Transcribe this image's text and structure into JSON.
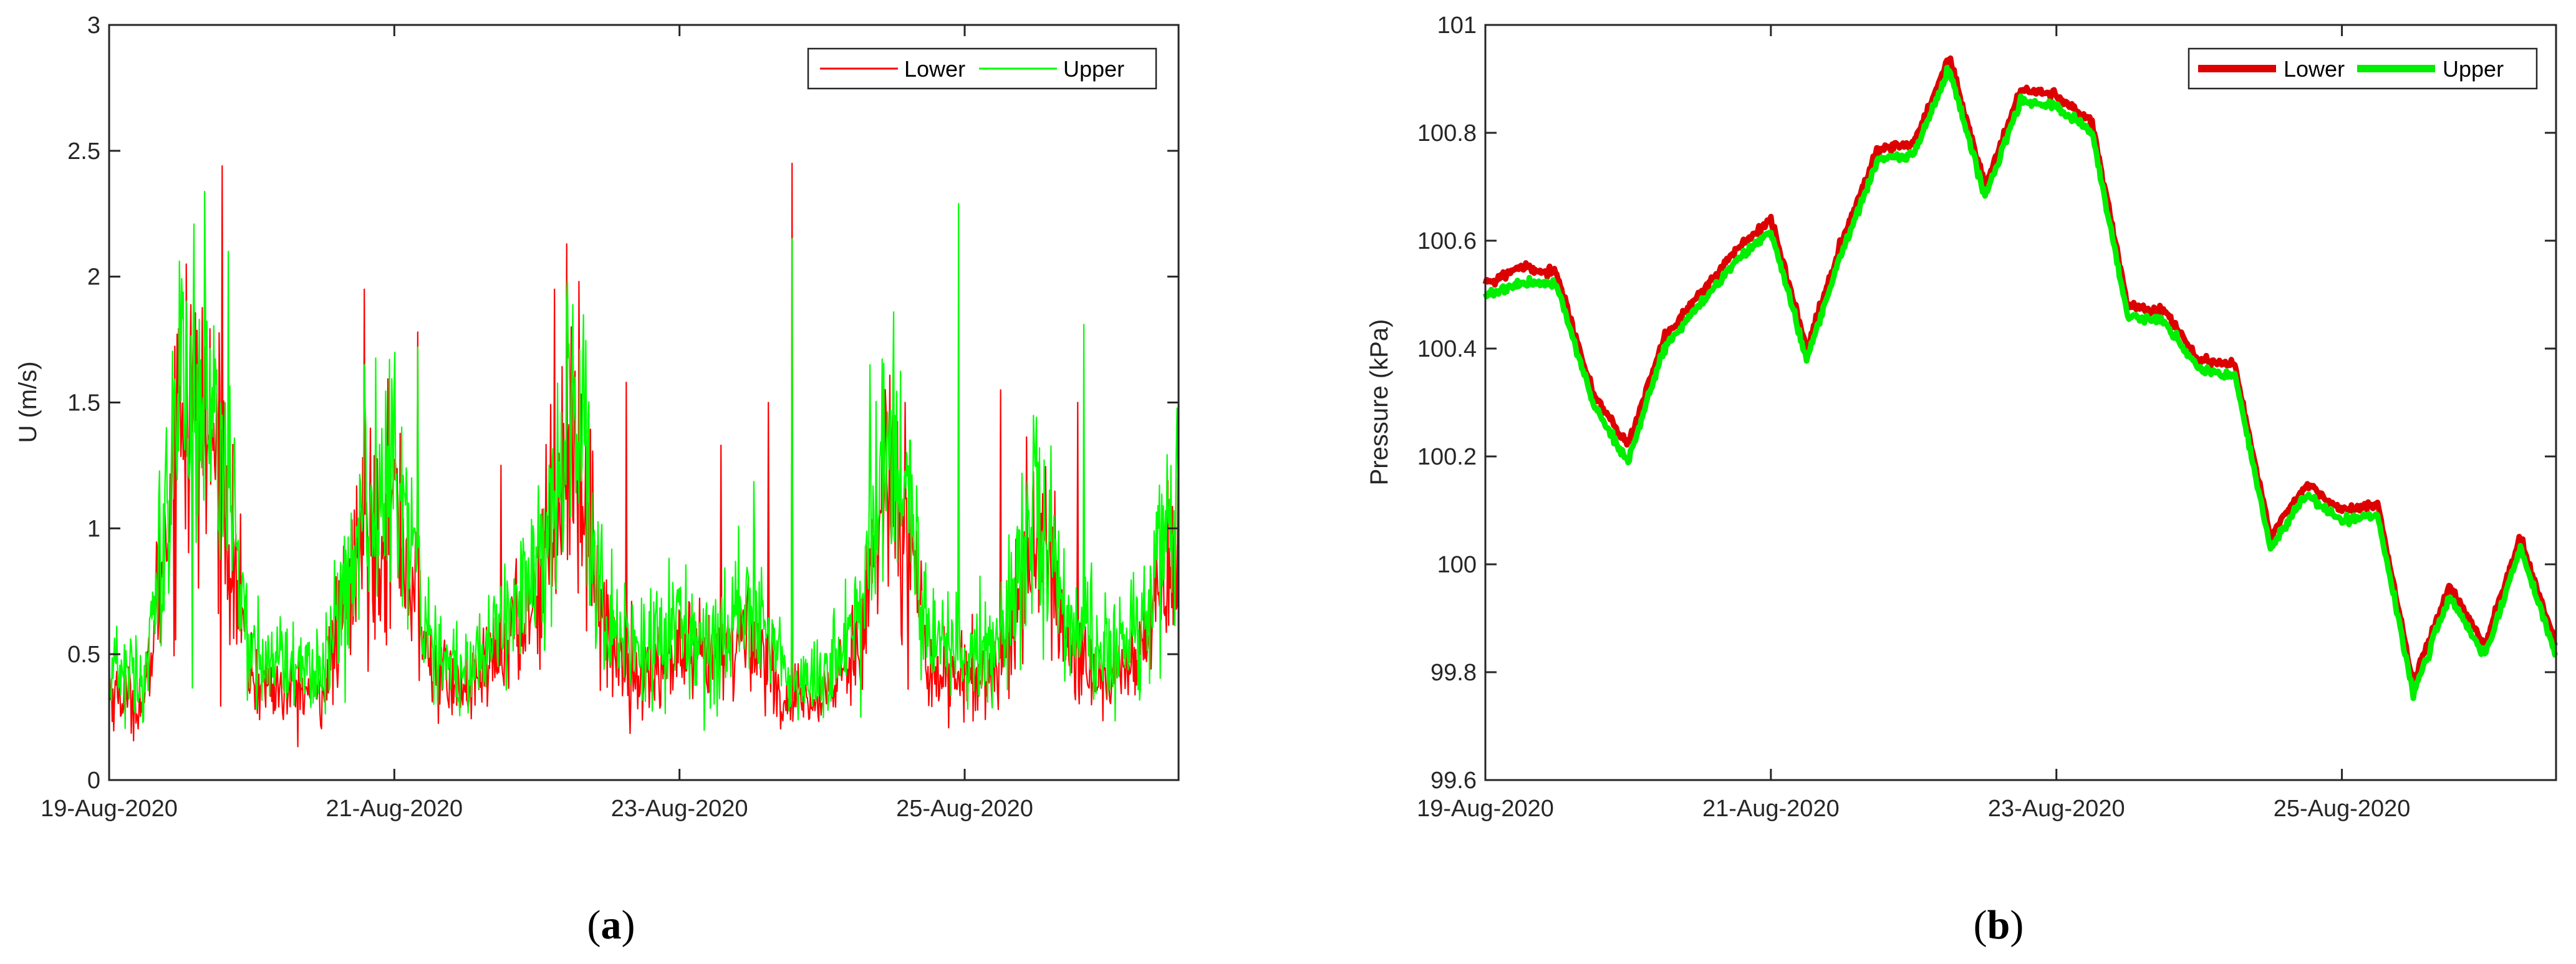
{
  "chart_data": [
    {
      "panel_label": "(a)",
      "panel_letter": "a",
      "type": "line",
      "ylabel": "U (m/s)",
      "xlabel": "",
      "x_start": "19-Aug-2020",
      "x_end": "26-Aug-2020 12:00",
      "x_ticks": [
        "19-Aug-2020",
        "21-Aug-2020",
        "23-Aug-2020",
        "25-Aug-2020"
      ],
      "ylim": [
        0,
        3
      ],
      "y_ticks": [
        "0",
        "0.5",
        "1",
        "1.5",
        "2",
        "2.5",
        "3"
      ],
      "y_tick_values": [
        0,
        0.5,
        1,
        1.5,
        2,
        2.5,
        3
      ],
      "grid": false,
      "legend_position": "top-right",
      "line_width": "thin",
      "series": [
        {
          "name": "Lower",
          "color": "#ff0000",
          "x": [
            "19-Aug-2020 00:00",
            "19-Aug-2020 06:00",
            "19-Aug-2020 12:00",
            "19-Aug-2020 18:00",
            "20-Aug-2020 00:00",
            "20-Aug-2020 06:00",
            "20-Aug-2020 12:00",
            "20-Aug-2020 18:00",
            "21-Aug-2020 00:00",
            "21-Aug-2020 06:00",
            "21-Aug-2020 12:00",
            "21-Aug-2020 18:00",
            "22-Aug-2020 00:00",
            "22-Aug-2020 06:00",
            "22-Aug-2020 12:00",
            "22-Aug-2020 18:00",
            "23-Aug-2020 00:00",
            "23-Aug-2020 06:00",
            "23-Aug-2020 12:00",
            "23-Aug-2020 18:00",
            "24-Aug-2020 00:00",
            "24-Aug-2020 06:00",
            "24-Aug-2020 12:00",
            "24-Aug-2020 18:00",
            "25-Aug-2020 00:00",
            "25-Aug-2020 06:00",
            "25-Aug-2020 12:00",
            "25-Aug-2020 18:00",
            "26-Aug-2020 00:00",
            "26-Aug-2020 06:00",
            "26-Aug-2020 12:00"
          ],
          "values": [
            0.35,
            0.3,
            1.5,
            1.3,
            0.4,
            0.35,
            0.35,
            0.9,
            1.1,
            0.45,
            0.35,
            0.5,
            0.75,
            1.4,
            0.55,
            0.4,
            0.5,
            0.45,
            0.6,
            0.3,
            0.3,
            0.55,
            1.3,
            0.45,
            0.4,
            0.45,
            1.0,
            0.5,
            0.4,
            0.5,
            1.0
          ],
          "peaks": [
            {
              "x": "19-Aug-2020 13:00",
              "y": 2.05
            },
            {
              "x": "19-Aug-2020 19:00",
              "y": 2.44
            },
            {
              "x": "20-Aug-2020 19:00",
              "y": 1.95
            },
            {
              "x": "21-Aug-2020 04:00",
              "y": 1.78
            },
            {
              "x": "21-Aug-2020 18:00",
              "y": 1.25
            },
            {
              "x": "22-Aug-2020 03:00",
              "y": 1.95
            },
            {
              "x": "22-Aug-2020 05:00",
              "y": 2.13
            },
            {
              "x": "22-Aug-2020 15:00",
              "y": 1.58
            },
            {
              "x": "23-Aug-2020 07:00",
              "y": 1.33
            },
            {
              "x": "23-Aug-2020 15:00",
              "y": 1.5
            },
            {
              "x": "23-Aug-2020 19:00",
              "y": 2.45
            },
            {
              "x": "24-Aug-2020 14:00",
              "y": 1.5
            },
            {
              "x": "25-Aug-2020 06:00",
              "y": 1.55
            },
            {
              "x": "25-Aug-2020 19:00",
              "y": 1.5
            }
          ]
        },
        {
          "name": "Upper",
          "color": "#00ff00",
          "x": [
            "19-Aug-2020 00:00",
            "19-Aug-2020 06:00",
            "19-Aug-2020 12:00",
            "19-Aug-2020 18:00",
            "20-Aug-2020 00:00",
            "20-Aug-2020 06:00",
            "20-Aug-2020 12:00",
            "20-Aug-2020 18:00",
            "21-Aug-2020 00:00",
            "21-Aug-2020 06:00",
            "21-Aug-2020 12:00",
            "21-Aug-2020 18:00",
            "22-Aug-2020 00:00",
            "22-Aug-2020 06:00",
            "22-Aug-2020 12:00",
            "22-Aug-2020 18:00",
            "23-Aug-2020 00:00",
            "23-Aug-2020 06:00",
            "23-Aug-2020 12:00",
            "23-Aug-2020 18:00",
            "24-Aug-2020 00:00",
            "24-Aug-2020 06:00",
            "24-Aug-2020 12:00",
            "24-Aug-2020 18:00",
            "25-Aug-2020 00:00",
            "25-Aug-2020 06:00",
            "25-Aug-2020 12:00",
            "25-Aug-2020 18:00",
            "26-Aug-2020 00:00",
            "26-Aug-2020 06:00",
            "26-Aug-2020 12:00"
          ],
          "values": [
            0.45,
            0.4,
            1.6,
            1.4,
            0.5,
            0.45,
            0.45,
            1.0,
            1.2,
            0.55,
            0.45,
            0.6,
            0.85,
            1.5,
            0.6,
            0.5,
            0.6,
            0.55,
            0.7,
            0.4,
            0.4,
            0.65,
            1.4,
            0.55,
            0.5,
            0.55,
            1.1,
            0.6,
            0.5,
            0.6,
            1.1
          ],
          "peaks": [
            {
              "x": "19-Aug-2020 20:00",
              "y": 2.1
            },
            {
              "x": "20-Aug-2020 19:00",
              "y": 1.65
            },
            {
              "x": "21-Aug-2020 04:00",
              "y": 1.72
            },
            {
              "x": "22-Aug-2020 05:00",
              "y": 1.9
            },
            {
              "x": "23-Aug-2020 19:00",
              "y": 2.15
            },
            {
              "x": "24-Aug-2020 08:00",
              "y": 1.65
            },
            {
              "x": "24-Aug-2020 23:00",
              "y": 2.29
            },
            {
              "x": "25-Aug-2020 20:00",
              "y": 1.81
            }
          ]
        }
      ]
    },
    {
      "panel_label": "(b)",
      "panel_letter": "b",
      "type": "line",
      "ylabel": "Pressure (kPa)",
      "xlabel": "",
      "x_start": "19-Aug-2020",
      "x_end": "26-Aug-2020 12:00",
      "x_ticks": [
        "19-Aug-2020",
        "21-Aug-2020",
        "23-Aug-2020",
        "25-Aug-2020"
      ],
      "ylim": [
        99.6,
        101
      ],
      "y_ticks": [
        "99.6",
        "99.8",
        "100",
        "100.2",
        "100.4",
        "100.6",
        "100.8",
        "101"
      ],
      "y_tick_values": [
        99.6,
        99.8,
        100,
        100.2,
        100.4,
        100.6,
        100.8,
        101
      ],
      "grid": false,
      "legend_position": "top-right",
      "line_width": "thick",
      "series": [
        {
          "name": "Lower",
          "color": "#dd0000",
          "x": [
            "19-Aug-2020 00:00",
            "19-Aug-2020 06:00",
            "19-Aug-2020 12:00",
            "19-Aug-2020 18:00",
            "20-Aug-2020 00:00",
            "20-Aug-2020 06:00",
            "20-Aug-2020 12:00",
            "20-Aug-2020 18:00",
            "21-Aug-2020 00:00",
            "21-Aug-2020 06:00",
            "21-Aug-2020 12:00",
            "21-Aug-2020 18:00",
            "22-Aug-2020 00:00",
            "22-Aug-2020 06:00",
            "22-Aug-2020 12:00",
            "22-Aug-2020 18:00",
            "23-Aug-2020 00:00",
            "23-Aug-2020 06:00",
            "23-Aug-2020 12:00",
            "23-Aug-2020 18:00",
            "24-Aug-2020 00:00",
            "24-Aug-2020 06:00",
            "24-Aug-2020 12:00",
            "24-Aug-2020 18:00",
            "25-Aug-2020 00:00",
            "25-Aug-2020 06:00",
            "25-Aug-2020 12:00",
            "25-Aug-2020 18:00",
            "26-Aug-2020 00:00",
            "26-Aug-2020 06:00",
            "26-Aug-2020 12:00"
          ],
          "values": [
            100.52,
            100.55,
            100.54,
            100.32,
            100.22,
            100.42,
            100.5,
            100.58,
            100.64,
            100.4,
            100.6,
            100.77,
            100.78,
            100.94,
            100.7,
            100.88,
            100.87,
            100.82,
            100.48,
            100.47,
            100.38,
            100.37,
            100.05,
            100.15,
            100.1,
            100.11,
            99.78,
            99.96,
            99.85,
            100.05,
            99.85
          ]
        },
        {
          "name": "Upper",
          "color": "#00ee00",
          "x": [
            "19-Aug-2020 00:00",
            "19-Aug-2020 06:00",
            "19-Aug-2020 12:00",
            "19-Aug-2020 18:00",
            "20-Aug-2020 00:00",
            "20-Aug-2020 06:00",
            "20-Aug-2020 12:00",
            "20-Aug-2020 18:00",
            "21-Aug-2020 00:00",
            "21-Aug-2020 06:00",
            "21-Aug-2020 12:00",
            "21-Aug-2020 18:00",
            "22-Aug-2020 00:00",
            "22-Aug-2020 06:00",
            "22-Aug-2020 12:00",
            "22-Aug-2020 18:00",
            "23-Aug-2020 00:00",
            "23-Aug-2020 06:00",
            "23-Aug-2020 12:00",
            "23-Aug-2020 18:00",
            "24-Aug-2020 00:00",
            "24-Aug-2020 06:00",
            "24-Aug-2020 12:00",
            "24-Aug-2020 18:00",
            "25-Aug-2020 00:00",
            "25-Aug-2020 06:00",
            "25-Aug-2020 12:00",
            "25-Aug-2020 18:00",
            "26-Aug-2020 00:00",
            "26-Aug-2020 06:00",
            "26-Aug-2020 12:00"
          ],
          "values": [
            100.5,
            100.52,
            100.52,
            100.3,
            100.19,
            100.4,
            100.48,
            100.56,
            100.62,
            100.38,
            100.58,
            100.75,
            100.76,
            100.92,
            100.68,
            100.86,
            100.85,
            100.8,
            100.46,
            100.45,
            100.36,
            100.35,
            100.03,
            100.13,
            100.08,
            100.09,
            99.76,
            99.94,
            99.83,
            100.03,
            99.83
          ]
        }
      ]
    }
  ]
}
